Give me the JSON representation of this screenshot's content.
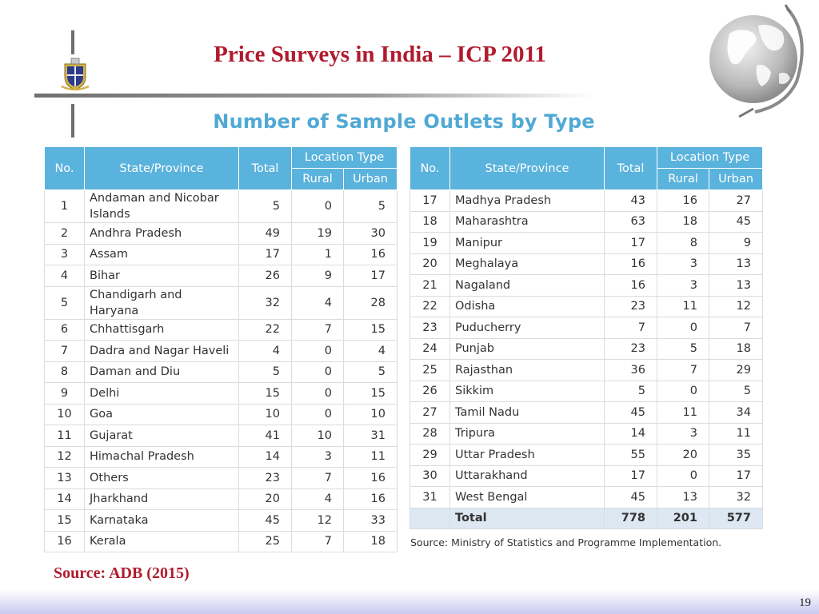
{
  "slide": {
    "title": "Price Surveys in India – ICP 2011",
    "subtitle": "Number of Sample Outlets by Type",
    "source_note": "Source: Ministry of Statistics and Programme Implementation.",
    "source_main": "Source: ADB (2015)",
    "page_number": "19"
  },
  "icons": {
    "crest": "university-crest-icon",
    "globe": "globe-icon"
  },
  "colors": {
    "title": "#b01b2e",
    "subtitle": "#4fa9d4",
    "header_bg": "#5ab3dc",
    "total_row_bg": "#dde8f2"
  },
  "table": {
    "headers": {
      "no": "No.",
      "state": "State/Province",
      "total": "Total",
      "location_type": "Location Type",
      "rural": "Rural",
      "urban": "Urban"
    },
    "left_rows": [
      {
        "no": "1",
        "state": "Andaman and Nicobar Islands",
        "total": "5",
        "rural": "0",
        "urban": "5"
      },
      {
        "no": "2",
        "state": "Andhra Pradesh",
        "total": "49",
        "rural": "19",
        "urban": "30"
      },
      {
        "no": "3",
        "state": "Assam",
        "total": "17",
        "rural": "1",
        "urban": "16"
      },
      {
        "no": "4",
        "state": "Bihar",
        "total": "26",
        "rural": "9",
        "urban": "17"
      },
      {
        "no": "5",
        "state": "Chandigarh and Haryana",
        "total": "32",
        "rural": "4",
        "urban": "28"
      },
      {
        "no": "6",
        "state": "Chhattisgarh",
        "total": "22",
        "rural": "7",
        "urban": "15"
      },
      {
        "no": "7",
        "state": "Dadra and Nagar Haveli",
        "total": "4",
        "rural": "0",
        "urban": "4"
      },
      {
        "no": "8",
        "state": "Daman and Diu",
        "total": "5",
        "rural": "0",
        "urban": "5"
      },
      {
        "no": "9",
        "state": "Delhi",
        "total": "15",
        "rural": "0",
        "urban": "15"
      },
      {
        "no": "10",
        "state": "Goa",
        "total": "10",
        "rural": "0",
        "urban": "10"
      },
      {
        "no": "11",
        "state": "Gujarat",
        "total": "41",
        "rural": "10",
        "urban": "31"
      },
      {
        "no": "12",
        "state": "Himachal Pradesh",
        "total": "14",
        "rural": "3",
        "urban": "11"
      },
      {
        "no": "13",
        "state": "Others",
        "total": "23",
        "rural": "7",
        "urban": "16"
      },
      {
        "no": "14",
        "state": "Jharkhand",
        "total": "20",
        "rural": "4",
        "urban": "16"
      },
      {
        "no": "15",
        "state": "Karnataka",
        "total": "45",
        "rural": "12",
        "urban": "33"
      },
      {
        "no": "16",
        "state": "Kerala",
        "total": "25",
        "rural": "7",
        "urban": "18"
      }
    ],
    "right_rows": [
      {
        "no": "17",
        "state": "Madhya Pradesh",
        "total": "43",
        "rural": "16",
        "urban": "27"
      },
      {
        "no": "18",
        "state": "Maharashtra",
        "total": "63",
        "rural": "18",
        "urban": "45"
      },
      {
        "no": "19",
        "state": "Manipur",
        "total": "17",
        "rural": "8",
        "urban": "9"
      },
      {
        "no": "20",
        "state": "Meghalaya",
        "total": "16",
        "rural": "3",
        "urban": "13"
      },
      {
        "no": "21",
        "state": "Nagaland",
        "total": "16",
        "rural": "3",
        "urban": "13"
      },
      {
        "no": "22",
        "state": "Odisha",
        "total": "23",
        "rural": "11",
        "urban": "12"
      },
      {
        "no": "23",
        "state": "Puducherry",
        "total": "7",
        "rural": "0",
        "urban": "7"
      },
      {
        "no": "24",
        "state": "Punjab",
        "total": "23",
        "rural": "5",
        "urban": "18"
      },
      {
        "no": "25",
        "state": "Rajasthan",
        "total": "36",
        "rural": "7",
        "urban": "29"
      },
      {
        "no": "26",
        "state": "Sikkim",
        "total": "5",
        "rural": "0",
        "urban": "5"
      },
      {
        "no": "27",
        "state": "Tamil Nadu",
        "total": "45",
        "rural": "11",
        "urban": "34"
      },
      {
        "no": "28",
        "state": "Tripura",
        "total": "14",
        "rural": "3",
        "urban": "11"
      },
      {
        "no": "29",
        "state": "Uttar Pradesh",
        "total": "55",
        "rural": "20",
        "urban": "35"
      },
      {
        "no": "30",
        "state": "Uttarakhand",
        "total": "17",
        "rural": "0",
        "urban": "17"
      },
      {
        "no": "31",
        "state": "West Bengal",
        "total": "45",
        "rural": "13",
        "urban": "32"
      }
    ],
    "total_row": {
      "label": "Total",
      "total": "778",
      "rural": "201",
      "urban": "577"
    }
  }
}
